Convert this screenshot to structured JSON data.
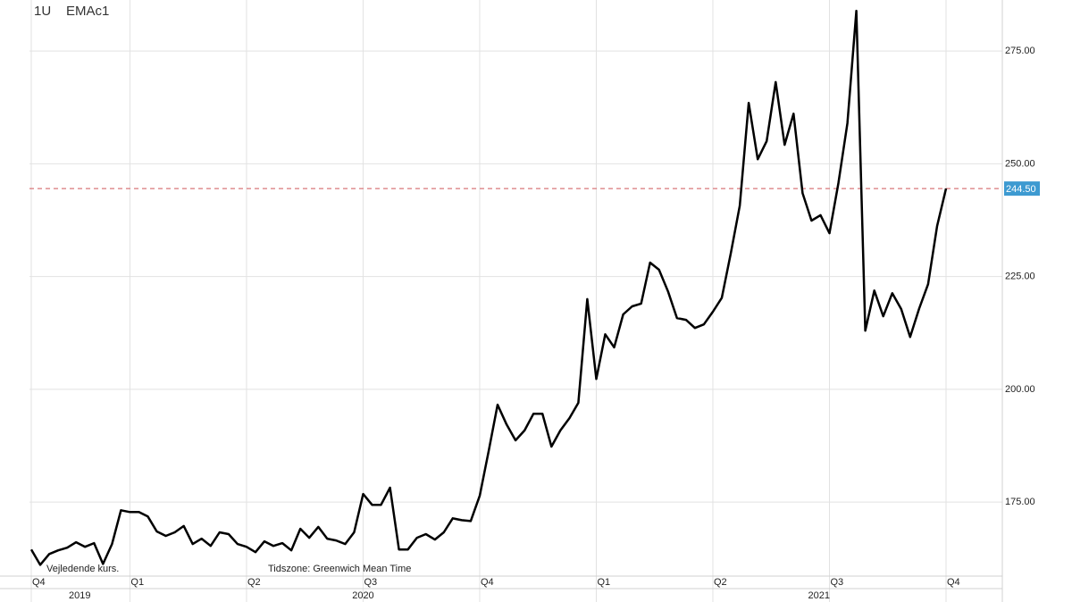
{
  "chart_data": {
    "type": "line",
    "symbol": "1U",
    "name": "EMAc1",
    "footnote": "Vejledende kurs.",
    "timezone": "Tidszone: Greenwich Mean Time",
    "categories": [
      "Q4",
      null,
      null,
      null,
      null,
      null,
      null,
      null,
      null,
      null,
      null,
      "Q1",
      null,
      null,
      null,
      null,
      null,
      null,
      null,
      null,
      null,
      null,
      null,
      null,
      "Q2",
      null,
      null,
      null,
      null,
      null,
      null,
      null,
      null,
      null,
      null,
      null,
      null,
      "Q3",
      null,
      null,
      null,
      null,
      null,
      null,
      null,
      null,
      null,
      null,
      null,
      null,
      "Q4",
      null,
      null,
      null,
      null,
      null,
      null,
      null,
      null,
      null,
      null,
      null,
      null,
      "Q1",
      null,
      null,
      null,
      null,
      null,
      null,
      null,
      null,
      null,
      null,
      null,
      null,
      "Q2",
      null,
      null,
      null,
      null,
      null,
      null,
      null,
      null,
      null,
      null,
      null,
      null,
      "Q3",
      null,
      null,
      null,
      null,
      null,
      null,
      null,
      null,
      null,
      null,
      null,
      null,
      "Q4"
    ],
    "years": [
      "2019",
      "2020",
      "2021"
    ],
    "series": [
      {
        "name": "EMAc1",
        "color": "#000000",
        "values": [
          164.5,
          161.1,
          163.5,
          164.3,
          164.9,
          166.1,
          165.1,
          165.9,
          161.3,
          165.7,
          173.2,
          172.8,
          172.8,
          171.8,
          168.5,
          167.5,
          168.3,
          169.7,
          165.7,
          166.9,
          165.3,
          168.3,
          167.9,
          165.7,
          165.1,
          163.9,
          166.3,
          165.3,
          165.9,
          164.3,
          169.1,
          167.1,
          169.5,
          166.9,
          166.5,
          165.7,
          168.3,
          176.8,
          174.4,
          174.4,
          178.2,
          164.5,
          164.5,
          167.1,
          167.9,
          166.7,
          168.3,
          171.4,
          171.0,
          170.8,
          176.4,
          186.3,
          196.6,
          192.2,
          188.7,
          190.9,
          194.6,
          194.6,
          187.3,
          190.9,
          193.6,
          197.0,
          220.0,
          202.3,
          212.2,
          209.3,
          216.6,
          218.4,
          219.0,
          228.1,
          226.5,
          221.7,
          215.8,
          215.4,
          213.6,
          214.4,
          217.2,
          220.3,
          230.2,
          240.7,
          263.5,
          251.0,
          255.0,
          268.1,
          254.2,
          261.1,
          243.5,
          237.4,
          238.6,
          234.6,
          245.7,
          259.0,
          283.9,
          213.0,
          221.9,
          216.2,
          221.3,
          217.8,
          211.6,
          217.9,
          223.3,
          236.2,
          244.5
        ]
      }
    ],
    "last_value": {
      "value": 244.5,
      "label": "244.50"
    },
    "last_value_color": "#3d9ad1",
    "last_line_color": "#d9777a",
    "ylim": [
      158.6,
      286.3
    ],
    "yticks": [
      {
        "value": 175,
        "label": "175.00"
      },
      {
        "value": 200,
        "label": "200.00"
      },
      {
        "value": 225,
        "label": "225.00"
      },
      {
        "value": 250,
        "label": "250.00"
      },
      {
        "value": 275,
        "label": "275.00"
      }
    ],
    "grid": true
  }
}
